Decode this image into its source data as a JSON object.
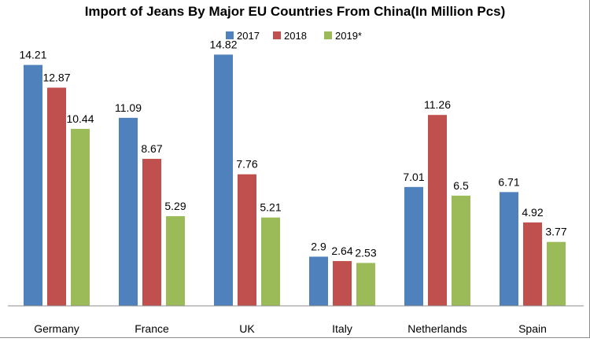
{
  "chart_data": {
    "type": "bar",
    "title": "Import of Jeans By Major EU Countries From China(In Million Pcs)",
    "categories": [
      "Germany",
      "France",
      "UK",
      "Italy",
      "Netherlands",
      "Spain"
    ],
    "series": [
      {
        "name": "2017",
        "color": "#4f81bd",
        "values": [
          14.21,
          11.09,
          14.82,
          2.9,
          7.01,
          6.71
        ],
        "labels": [
          "14.21",
          "11.09",
          "14.82",
          "2.9",
          "7.01",
          "6.71"
        ]
      },
      {
        "name": "2018",
        "color": "#c0504d",
        "values": [
          12.87,
          8.67,
          7.76,
          2.64,
          11.26,
          4.92
        ],
        "labels": [
          "12.87",
          "8.67",
          "7.76",
          "2.64",
          "11.26",
          "4.92"
        ]
      },
      {
        "name": "2019*",
        "color": "#9bbb59",
        "values": [
          10.44,
          5.29,
          5.21,
          2.53,
          6.5,
          3.77
        ],
        "labels": [
          "10.44",
          "5.29",
          "5.21",
          "2.53",
          "6.5",
          "3.77"
        ]
      }
    ],
    "ylim": [
      0,
      16
    ],
    "legend_position": "top-center",
    "grid": false
  }
}
